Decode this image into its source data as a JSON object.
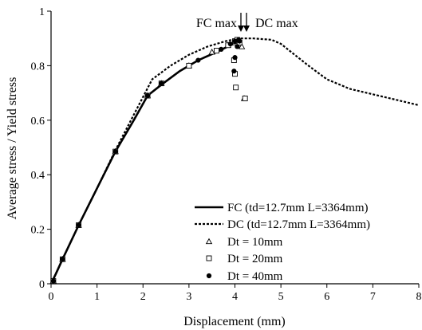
{
  "chart_data": {
    "type": "line",
    "xlabel": "Displacement (mm)",
    "ylabel": "Average stress / Yield stress",
    "xlim": [
      0,
      8
    ],
    "ylim": [
      0,
      1
    ],
    "xticks": [
      "0",
      "1",
      "2",
      "3",
      "4",
      "5",
      "6",
      "7",
      "8"
    ],
    "yticks": [
      "0",
      "0.2",
      "0.4",
      "0.6",
      "0.8",
      "1"
    ],
    "grid": false,
    "legend_position": "lower-right",
    "annotations": [
      {
        "text": "FC max",
        "x": 4.05,
        "y": 1.0
      },
      {
        "text": "DC max",
        "x": 4.2,
        "y": 1.0
      }
    ],
    "series": [
      {
        "name": "FC (td=12.7mm L=3364mm)",
        "style": "solid",
        "x": [
          0,
          0.1,
          0.25,
          0.6,
          1.0,
          1.4,
          1.8,
          2.1,
          2.4,
          2.8,
          3.2,
          3.6,
          3.9,
          4.05,
          4.1
        ],
        "y": [
          0,
          0.035,
          0.09,
          0.215,
          0.35,
          0.485,
          0.6,
          0.69,
          0.73,
          0.78,
          0.82,
          0.85,
          0.875,
          0.885,
          0.895
        ]
      },
      {
        "name": "DC (td=12.7mm L=3364mm)",
        "style": "dashed",
        "x": [
          0,
          0.1,
          0.25,
          0.6,
          1.0,
          1.4,
          1.8,
          2.2,
          2.6,
          3.0,
          3.4,
          3.8,
          4.1,
          4.4,
          4.8,
          5.0,
          5.3,
          5.6,
          6.0,
          6.5,
          7.0,
          7.5,
          8.0
        ],
        "y": [
          0,
          0.035,
          0.09,
          0.215,
          0.35,
          0.49,
          0.62,
          0.75,
          0.8,
          0.84,
          0.87,
          0.89,
          0.9,
          0.9,
          0.895,
          0.88,
          0.84,
          0.8,
          0.75,
          0.715,
          0.695,
          0.675,
          0.655
        ]
      },
      {
        "name": "Dt = 10mm",
        "marker": "triangle",
        "x": [
          0.05,
          0.25,
          0.6,
          1.4,
          2.1,
          2.4,
          3.0,
          3.5,
          3.85,
          4.0,
          4.1,
          4.15,
          4.2
        ],
        "y": [
          0.01,
          0.09,
          0.215,
          0.485,
          0.69,
          0.735,
          0.8,
          0.85,
          0.875,
          0.885,
          0.875,
          0.87,
          0.68
        ]
      },
      {
        "name": "Dt = 20mm",
        "marker": "square",
        "x": [
          0.05,
          0.25,
          0.6,
          1.4,
          2.1,
          2.4,
          3.0,
          3.6,
          3.85,
          4.0,
          4.05,
          4.1,
          3.98,
          4.0,
          4.02,
          4.22
        ],
        "y": [
          0.01,
          0.09,
          0.215,
          0.485,
          0.69,
          0.735,
          0.8,
          0.855,
          0.875,
          0.89,
          0.895,
          0.885,
          0.82,
          0.77,
          0.72,
          0.68
        ]
      },
      {
        "name": "Dt = 40mm",
        "marker": "circle",
        "x": [
          0.05,
          0.25,
          0.6,
          1.4,
          2.1,
          2.4,
          3.2,
          3.7,
          3.9,
          4.0,
          4.08,
          4.1,
          4.05,
          4.0,
          3.98
        ],
        "y": [
          0.01,
          0.09,
          0.215,
          0.485,
          0.69,
          0.735,
          0.82,
          0.86,
          0.88,
          0.89,
          0.895,
          0.89,
          0.87,
          0.83,
          0.78
        ]
      }
    ]
  }
}
